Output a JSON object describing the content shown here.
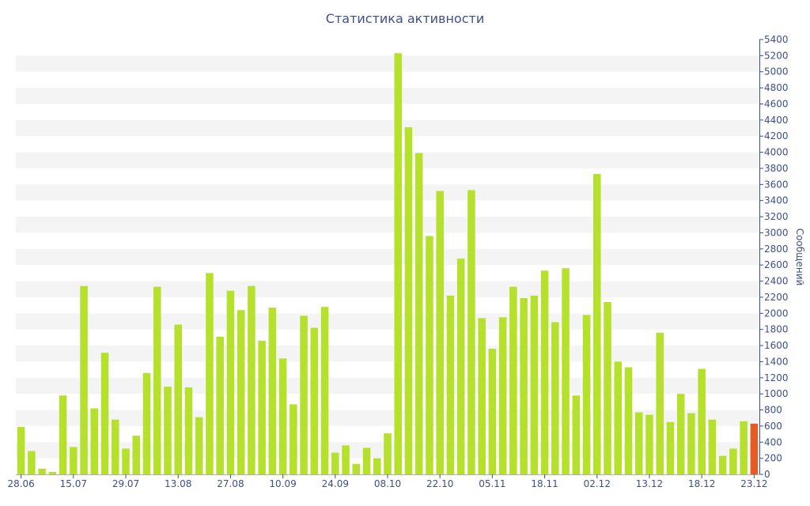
{
  "chart_data": {
    "type": "bar",
    "title": "Статистика активности",
    "ylabel": "Сообщений",
    "xlabel": "",
    "ylim": [
      0,
      5400
    ],
    "y_ticks": [
      0,
      200,
      400,
      600,
      800,
      1000,
      1200,
      1400,
      1600,
      1800,
      2000,
      2200,
      2400,
      2600,
      2800,
      3000,
      3200,
      3400,
      3600,
      3800,
      4000,
      4200,
      4400,
      4600,
      4800,
      5000,
      5200,
      5400
    ],
    "x_tick_labels": [
      "28.06",
      "15.07",
      "29.07",
      "13.08",
      "27.08",
      "10.09",
      "24.09",
      "08.10",
      "22.10",
      "05.11",
      "18.11",
      "02.12",
      "13.12",
      "18.12",
      "23.12"
    ],
    "x_tick_positions": [
      0,
      5,
      10,
      15,
      20,
      25,
      30,
      35,
      40,
      45,
      50,
      55,
      60,
      65,
      70
    ],
    "grid": "horizontal-bands",
    "legend": "none",
    "colors": {
      "bar": "#b5e02b",
      "highlight": "#e55b25",
      "text": "#3d4f8a",
      "band": "#f4f4f4"
    },
    "highlight_index": 70,
    "values": [
      590,
      290,
      70,
      30,
      980,
      340,
      2340,
      820,
      1510,
      680,
      320,
      480,
      1260,
      2330,
      1090,
      1860,
      1080,
      710,
      2500,
      1710,
      2280,
      2040,
      2340,
      1660,
      2070,
      1440,
      870,
      1970,
      1820,
      2080,
      270,
      360,
      130,
      330,
      200,
      510,
      5230,
      4310,
      3990,
      2960,
      3520,
      2220,
      2680,
      3530,
      1940,
      1560,
      1950,
      2330,
      2190,
      2220,
      2530,
      1890,
      2560,
      980,
      1980,
      3730,
      2140,
      1400,
      1330,
      770,
      740,
      1760,
      650,
      1000,
      760,
      1310,
      680,
      230,
      320,
      660,
      630
    ]
  }
}
